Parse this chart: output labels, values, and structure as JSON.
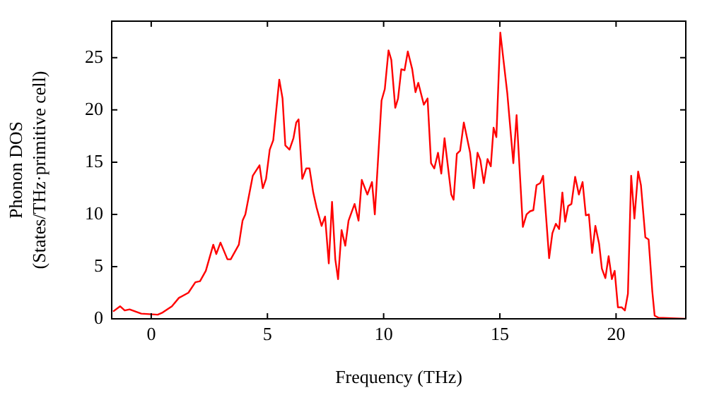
{
  "chart_data": {
    "type": "line",
    "xlabel": "Frequency (THz)",
    "ylabel": "Phonon DOS\n(States/THz·primitive cell)",
    "xlim": [
      -1.7,
      23.0
    ],
    "ylim": [
      0,
      28.5
    ],
    "xticks": [
      0,
      5,
      10,
      15,
      20
    ],
    "yticks": [
      0,
      5,
      10,
      15,
      20,
      25
    ],
    "grid": false,
    "legend": false,
    "marker": "none",
    "line_style": "solid",
    "series": [
      {
        "color": "#ff0000",
        "x": [
          -1.64,
          -1.34,
          -1.14,
          -0.93,
          -0.43,
          0.28,
          0.49,
          0.89,
          1.19,
          1.6,
          1.9,
          2.1,
          2.35,
          2.67,
          2.8,
          2.98,
          3.28,
          3.42,
          3.77,
          3.93,
          4.05,
          4.37,
          4.66,
          4.8,
          4.94,
          5.1,
          5.25,
          5.51,
          5.65,
          5.77,
          5.95,
          6.12,
          6.24,
          6.34,
          6.5,
          6.67,
          6.81,
          6.97,
          7.11,
          7.33,
          7.48,
          7.64,
          7.78,
          7.92,
          8.04,
          8.19,
          8.35,
          8.49,
          8.75,
          8.92,
          9.06,
          9.3,
          9.5,
          9.62,
          9.91,
          10.05,
          10.21,
          10.33,
          10.5,
          10.62,
          10.76,
          10.9,
          11.04,
          11.23,
          11.37,
          11.49,
          11.73,
          11.89,
          12.04,
          12.18,
          12.34,
          12.48,
          12.62,
          12.91,
          13.01,
          13.15,
          13.29,
          13.45,
          13.72,
          13.88,
          14.04,
          14.16,
          14.31,
          14.47,
          14.61,
          14.73,
          14.85,
          15.02,
          15.32,
          15.58,
          15.72,
          15.99,
          16.15,
          16.3,
          16.44,
          16.58,
          16.74,
          16.86,
          17.12,
          17.26,
          17.41,
          17.55,
          17.69,
          17.81,
          17.94,
          18.08,
          18.24,
          18.4,
          18.56,
          18.7,
          18.83,
          18.97,
          19.11,
          19.27,
          19.39,
          19.54,
          19.68,
          19.82,
          19.94,
          20.08,
          20.24,
          20.38,
          20.51,
          20.65,
          20.79,
          20.95,
          21.07,
          21.26,
          21.4,
          21.56,
          21.66,
          21.83,
          22.98
        ],
        "values": [
          0.7,
          1.2,
          0.8,
          0.9,
          0.5,
          0.4,
          0.6,
          1.2,
          2.0,
          2.5,
          3.5,
          3.6,
          4.6,
          7.1,
          6.2,
          7.3,
          5.7,
          5.7,
          7.1,
          9.4,
          10.0,
          13.7,
          14.7,
          12.5,
          13.4,
          16.2,
          17.1,
          22.9,
          21.1,
          16.6,
          16.2,
          17.3,
          18.8,
          19.1,
          13.4,
          14.4,
          14.4,
          12.1,
          10.7,
          8.9,
          9.8,
          5.3,
          11.2,
          5.7,
          3.8,
          8.5,
          7.0,
          9.4,
          11.0,
          9.4,
          13.3,
          11.9,
          13.1,
          10.0,
          20.9,
          22.0,
          25.7,
          24.8,
          20.2,
          21.1,
          23.9,
          23.8,
          25.6,
          23.9,
          21.7,
          22.6,
          20.5,
          21.1,
          14.9,
          14.4,
          15.9,
          13.9,
          17.3,
          11.9,
          11.4,
          15.8,
          16.1,
          18.8,
          15.9,
          12.5,
          15.9,
          15.2,
          13.0,
          15.3,
          14.6,
          18.3,
          17.4,
          27.4,
          21.6,
          14.9,
          19.5,
          8.8,
          10.0,
          10.3,
          10.4,
          12.8,
          13.0,
          13.7,
          5.8,
          8.2,
          9.1,
          8.6,
          12.1,
          9.3,
          10.8,
          11.0,
          13.6,
          11.9,
          13.1,
          9.9,
          10.0,
          6.3,
          8.9,
          7.2,
          4.8,
          3.9,
          6.0,
          3.8,
          4.6,
          1.1,
          1.1,
          0.8,
          2.4,
          13.7,
          9.6,
          14.1,
          12.8,
          7.8,
          7.6,
          2.6,
          0.3,
          0.1,
          0
        ]
      }
    ]
  }
}
